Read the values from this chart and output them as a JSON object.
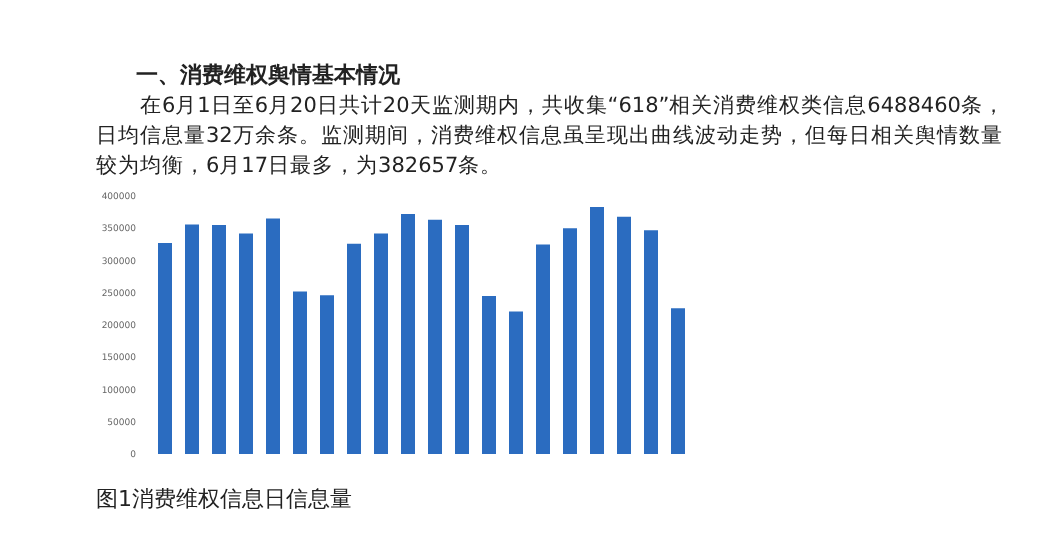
{
  "chart_data": {
    "type": "bar",
    "title": "一、消费维权舆情基本情况",
    "subtitle": "在6月1日至6月20日共计20天监测期内，共收集“618”相关消费维权类信息6488460条，日均信息量32万余条。监测期间，消费维权信息虽呈现出曲线波动走势，但每日相关舆情数量较为均衡，6月17日最多，为382657条。",
    "categories": [
      null,
      null,
      null,
      null,
      null,
      null,
      null,
      null,
      null,
      null,
      null,
      null,
      null,
      null,
      null,
      null,
      null,
      null,
      null,
      null
    ],
    "values": [
      327000,
      356000,
      355000,
      342000,
      365000,
      252000,
      246000,
      326000,
      342000,
      372000,
      363000,
      355000,
      245000,
      221000,
      325000,
      350000,
      383000,
      368000,
      347000,
      226000
    ],
    "color": "#2b6cc0",
    "ylim": [
      0,
      400000
    ],
    "yticks": [
      0,
      50000,
      100000,
      150000,
      200000,
      250000,
      300000,
      350000,
      400000
    ],
    "grid": false,
    "annotations": [
      "图1消费维权信息日信息量"
    ]
  }
}
